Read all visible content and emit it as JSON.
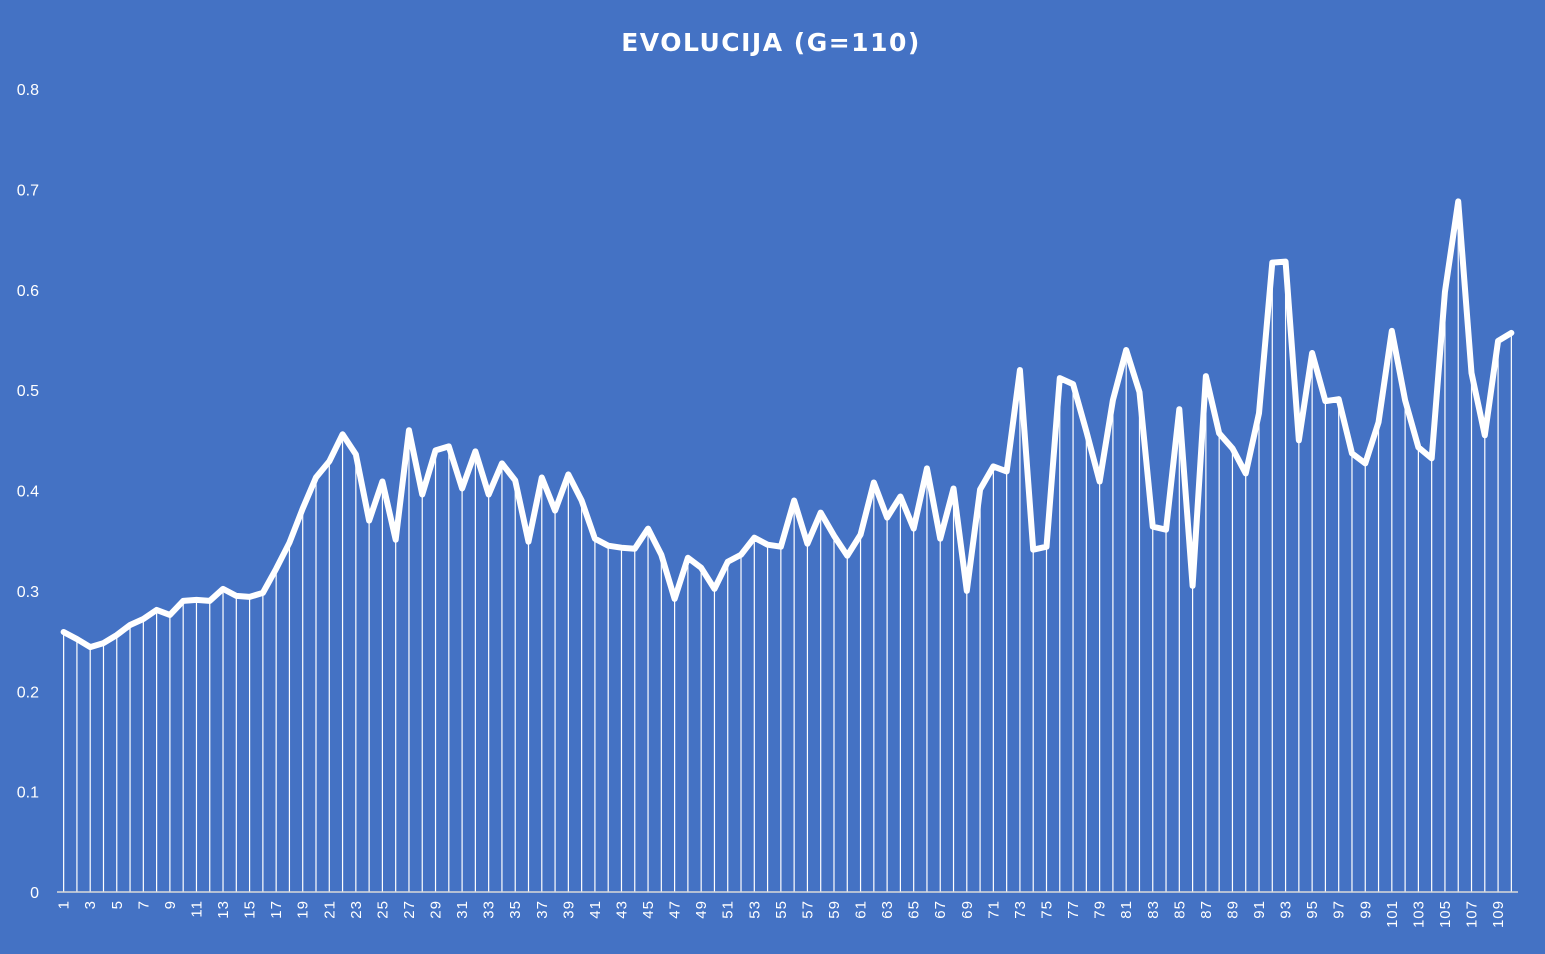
{
  "chart_data": {
    "type": "area",
    "title": "EVOLUCIJA  (G=110)",
    "xlabel": "",
    "ylabel": "",
    "ylim": [
      0,
      0.8
    ],
    "yticks": [
      "0",
      "0.1",
      "0.2",
      "0.3",
      "0.4",
      "0.5",
      "0.6",
      "0.7",
      "0.8"
    ],
    "xtick_step": 2,
    "grid": false,
    "legend": "none",
    "colors": {
      "background": "#4472C4",
      "line": "#FFFFFF",
      "text": "#FFFFFF"
    },
    "x": [
      1,
      2,
      3,
      4,
      5,
      6,
      7,
      8,
      9,
      10,
      11,
      12,
      13,
      14,
      15,
      16,
      17,
      18,
      19,
      20,
      21,
      22,
      23,
      24,
      25,
      26,
      27,
      28,
      29,
      30,
      31,
      32,
      33,
      34,
      35,
      36,
      37,
      38,
      39,
      40,
      41,
      42,
      43,
      44,
      45,
      46,
      47,
      48,
      49,
      50,
      51,
      52,
      53,
      54,
      55,
      56,
      57,
      58,
      59,
      60,
      61,
      62,
      63,
      64,
      65,
      66,
      67,
      68,
      69,
      70,
      71,
      72,
      73,
      74,
      75,
      76,
      77,
      78,
      79,
      80,
      81,
      82,
      83,
      84,
      85,
      86,
      87,
      88,
      89,
      90,
      91,
      92,
      93,
      94,
      95,
      96,
      97,
      98,
      99,
      100,
      101,
      102,
      103,
      104,
      105,
      106,
      107,
      108,
      109,
      110
    ],
    "series": [
      {
        "values": [
          0.259,
          0.252,
          0.244,
          0.248,
          0.256,
          0.266,
          0.272,
          0.281,
          0.276,
          0.29,
          0.291,
          0.29,
          0.302,
          0.295,
          0.294,
          0.298,
          0.322,
          0.348,
          0.382,
          0.413,
          0.429,
          0.456,
          0.436,
          0.37,
          0.409,
          0.351,
          0.46,
          0.396,
          0.44,
          0.444,
          0.402,
          0.439,
          0.396,
          0.427,
          0.41,
          0.349,
          0.413,
          0.38,
          0.416,
          0.39,
          0.352,
          0.345,
          0.343,
          0.342,
          0.362,
          0.336,
          0.292,
          0.333,
          0.323,
          0.302,
          0.329,
          0.336,
          0.353,
          0.346,
          0.344,
          0.39,
          0.347,
          0.378,
          0.355,
          0.335,
          0.356,
          0.408,
          0.373,
          0.394,
          0.362,
          0.422,
          0.352,
          0.402,
          0.3,
          0.401,
          0.424,
          0.419,
          0.52,
          0.341,
          0.344,
          0.512,
          0.506,
          0.459,
          0.409,
          0.49,
          0.54,
          0.498,
          0.364,
          0.361,
          0.481,
          0.305,
          0.514,
          0.457,
          0.442,
          0.417,
          0.477,
          0.627,
          0.628,
          0.45,
          0.537,
          0.489,
          0.491,
          0.437,
          0.427,
          0.468,
          0.559,
          0.49,
          0.443,
          0.432,
          0.598,
          0.688,
          0.517,
          0.455,
          0.549,
          0.557
        ]
      }
    ]
  }
}
